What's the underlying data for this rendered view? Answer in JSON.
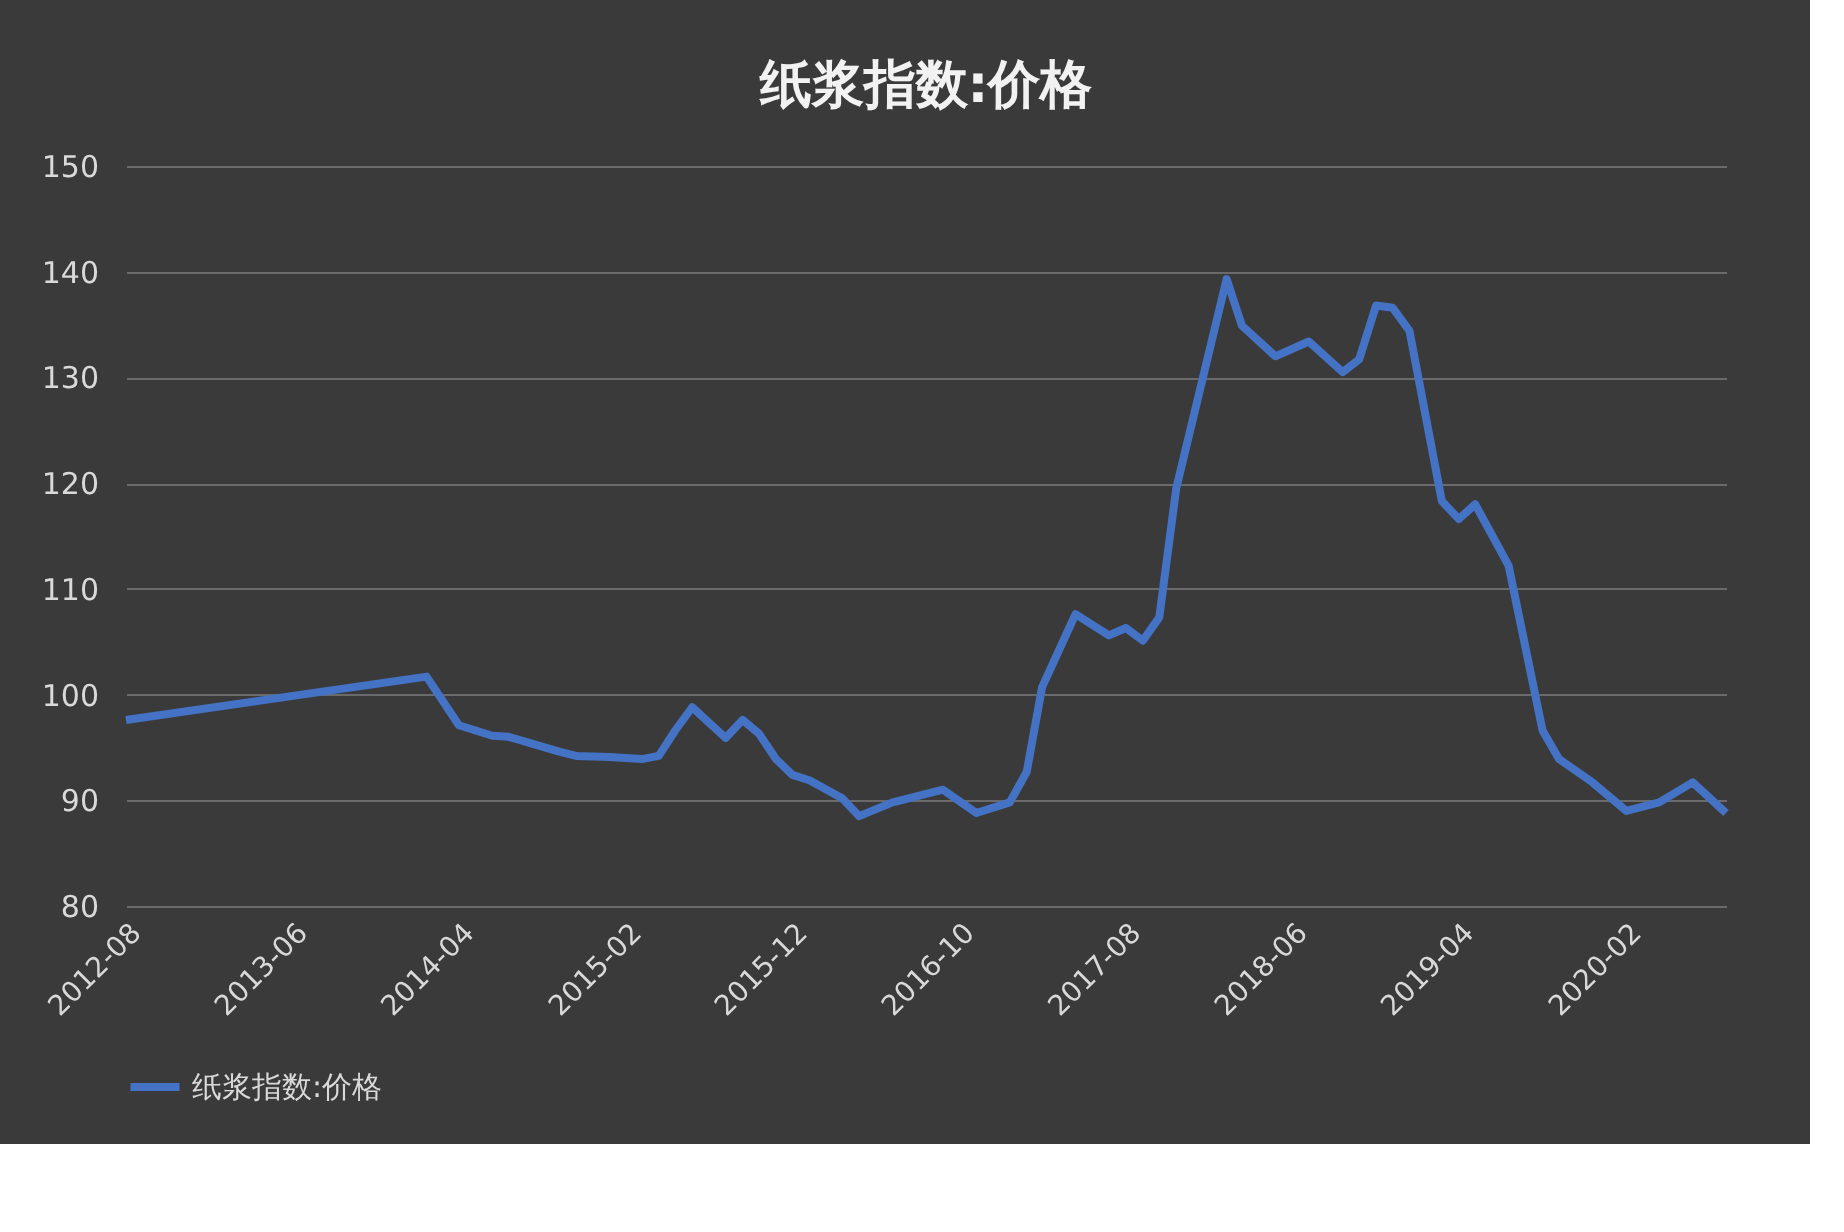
{
  "chart_data": {
    "type": "line",
    "title": "纸浆指数:价格",
    "x": [
      "2012-08",
      "2014-02",
      "2014-04",
      "2014-06",
      "2014-07",
      "2014-10",
      "2014-11",
      "2015-01",
      "2015-03",
      "2015-04",
      "2015-05",
      "2015-06",
      "2015-08",
      "2015-09",
      "2015-10",
      "2015-11",
      "2015-12",
      "2016-01",
      "2016-03",
      "2016-04",
      "2016-06",
      "2016-09",
      "2016-11",
      "2017-01",
      "2017-02",
      "2017-03",
      "2017-05",
      "2017-07",
      "2017-08",
      "2017-09",
      "2017-10",
      "2017-11",
      "2018-02",
      "2018-03",
      "2018-05",
      "2018-07",
      "2018-09",
      "2018-10",
      "2018-11",
      "2018-12",
      "2019-01",
      "2019-03",
      "2019-04",
      "2019-05",
      "2019-07",
      "2019-09",
      "2019-10",
      "2019-12",
      "2020-02",
      "2020-04",
      "2020-06",
      "2020-08"
    ],
    "series": [
      {
        "name": "纸浆指数:价格",
        "color": "#4472c4",
        "values": [
          97.6,
          101.7,
          97.1,
          96.1,
          96.0,
          94.6,
          94.2,
          94.1,
          93.9,
          94.2,
          96.6,
          98.8,
          95.9,
          97.6,
          96.3,
          93.9,
          92.4,
          91.9,
          90.2,
          88.5,
          89.8,
          91.0,
          88.8,
          89.8,
          92.7,
          100.7,
          107.6,
          105.6,
          106.3,
          105.1,
          107.3,
          119.5,
          139.3,
          134.9,
          132.0,
          133.4,
          130.5,
          131.7,
          136.8,
          136.6,
          134.4,
          118.3,
          116.6,
          118.0,
          112.2,
          96.6,
          93.9,
          91.7,
          89.0,
          89.8,
          91.7,
          88.8
        ]
      }
    ],
    "xlim": [
      "2012-08",
      "2020-08"
    ],
    "xticks": [
      "2012-08",
      "2013-06",
      "2014-04",
      "2015-02",
      "2015-12",
      "2016-10",
      "2017-08",
      "2018-06",
      "2019-04",
      "2020-02"
    ],
    "ylim": [
      80,
      150
    ],
    "yticks": [
      80,
      90,
      100,
      110,
      120,
      130,
      140,
      150
    ],
    "grid": "y",
    "legend": "bottom",
    "marker": "none",
    "line_style": "solid"
  }
}
